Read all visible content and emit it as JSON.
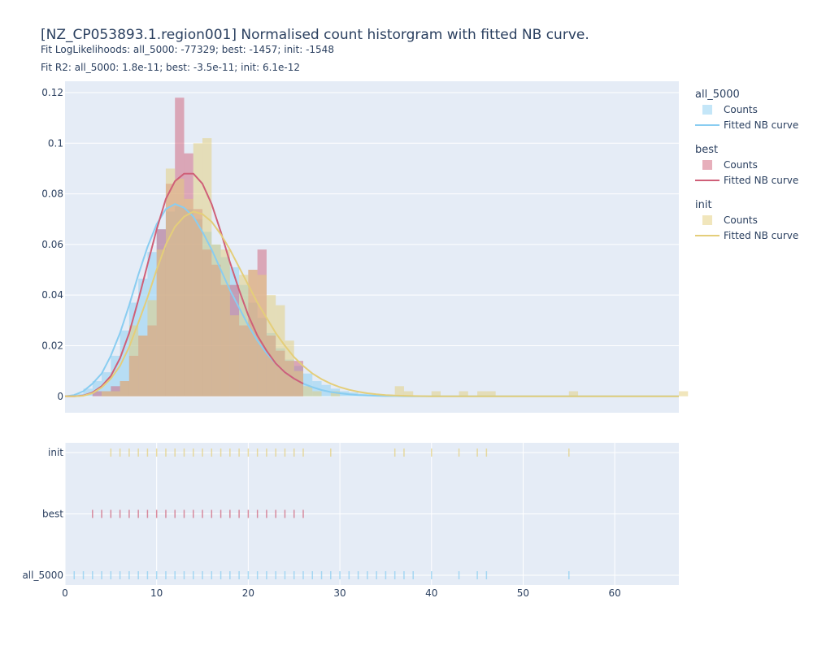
{
  "title": "[NZ_CP053893.1.region001] Normalised count historgram with fitted NB curve.",
  "subtitle_1": "Fit LogLikelihoods: all_5000: -77329; best: -1457; init: -1548",
  "subtitle_2": "Fit R2: all_5000: 1.8e-11; best: -3.5e-11; init: 6.1e-12",
  "colors": {
    "plot_bg": "#e5ecf6",
    "grid": "#ffffff",
    "all_5000": "#89cdf1",
    "best": "#cf5f78",
    "init": "#e4ce7a"
  },
  "legend": [
    {
      "group": "all_5000",
      "items": [
        "Counts",
        "Fitted NB curve"
      ]
    },
    {
      "group": "best",
      "items": [
        "Counts",
        "Fitted NB curve"
      ]
    },
    {
      "group": "init",
      "items": [
        "Counts",
        "Fitted NB curve"
      ]
    }
  ],
  "chart_data": [
    {
      "type": "bar",
      "panel": "histogram",
      "xlim": [
        0,
        67
      ],
      "ylim": [
        -0.0065,
        0.1245
      ],
      "yticks": [
        0,
        0.02,
        0.04,
        0.06,
        0.08,
        0.1,
        0.12
      ],
      "ytick_labels": [
        "0",
        "0.02",
        "0.04",
        "0.06",
        "0.08",
        "0.1",
        "0.12"
      ],
      "grid": true,
      "legend_position": "right",
      "series": [
        {
          "name": "all_5000",
          "kind": "histogram",
          "bin_width": 1,
          "x": [
            0,
            1,
            2,
            3,
            4,
            5,
            6,
            7,
            8,
            9,
            10,
            11,
            12,
            13,
            14,
            15,
            16,
            17,
            18,
            19,
            20,
            21,
            22,
            23,
            24,
            25,
            26,
            27,
            28,
            29,
            30,
            31,
            32,
            33,
            34,
            35,
            36,
            37
          ],
          "values": [
            0,
            0.001,
            0.003,
            0.006,
            0.0095,
            0.016,
            0.026,
            0.037,
            0.0465,
            0.057,
            0.066,
            0.073,
            0.075,
            0.074,
            0.07,
            0.065,
            0.06,
            0.055,
            0.051,
            0.044,
            0.037,
            0.031,
            0.025,
            0.019,
            0.0145,
            0.012,
            0.009,
            0.006,
            0.0045,
            0.003,
            0.002,
            0.0015,
            0.001,
            0.001,
            0.0005,
            0.0005,
            0.0005,
            0.0003
          ]
        },
        {
          "name": "best",
          "kind": "histogram",
          "bin_width": 1,
          "x": [
            3,
            4,
            5,
            6,
            7,
            8,
            9,
            10,
            11,
            12,
            13,
            14,
            15,
            16,
            17,
            18,
            19,
            20,
            21,
            22,
            23,
            24,
            25
          ],
          "values": [
            0.002,
            0.002,
            0.004,
            0.006,
            0.016,
            0.024,
            0.028,
            0.066,
            0.084,
            0.118,
            0.096,
            0.074,
            0.058,
            0.052,
            0.044,
            0.044,
            0.028,
            0.05,
            0.058,
            0.024,
            0.018,
            0.014,
            0.014
          ]
        },
        {
          "name": "init",
          "kind": "histogram",
          "bin_width": 1,
          "x": [
            4,
            5,
            6,
            7,
            8,
            9,
            10,
            11,
            12,
            13,
            14,
            15,
            16,
            17,
            18,
            19,
            20,
            21,
            22,
            23,
            24,
            25,
            26,
            27,
            29,
            36,
            37,
            40,
            43,
            45,
            46,
            55,
            67
          ],
          "values": [
            0.002,
            0.002,
            0.006,
            0.028,
            0.024,
            0.038,
            0.058,
            0.09,
            0.086,
            0.078,
            0.1,
            0.102,
            0.06,
            0.058,
            0.032,
            0.048,
            0.05,
            0.048,
            0.04,
            0.036,
            0.022,
            0.01,
            0.004,
            0.002,
            0.002,
            0.004,
            0.002,
            0.002,
            0.002,
            0.002,
            0.002,
            0.002,
            0.002
          ]
        },
        {
          "name": "all_5000",
          "kind": "fitted_curve",
          "x": [
            0,
            1,
            2,
            3,
            4,
            5,
            6,
            7,
            8,
            9,
            10,
            11,
            12,
            13,
            14,
            15,
            16,
            17,
            18,
            19,
            20,
            21,
            22,
            23,
            24,
            25,
            26,
            27,
            28,
            29,
            30,
            31,
            32,
            33,
            34,
            35,
            36,
            37,
            38,
            40,
            45,
            50,
            55,
            60,
            67
          ],
          "values": [
            0,
            0.0005,
            0.002,
            0.005,
            0.009,
            0.016,
            0.025,
            0.036,
            0.048,
            0.059,
            0.068,
            0.074,
            0.076,
            0.0745,
            0.071,
            0.065,
            0.058,
            0.05,
            0.042,
            0.035,
            0.028,
            0.022,
            0.017,
            0.013,
            0.0095,
            0.007,
            0.005,
            0.0036,
            0.0025,
            0.0017,
            0.0012,
            0.0008,
            0.0005,
            0.0003,
            0.0002,
            0.0001,
            0.0001,
            5e-05,
            0,
            0,
            0,
            0,
            0,
            0,
            0
          ]
        },
        {
          "name": "best",
          "kind": "fitted_curve",
          "x": [
            0,
            1,
            2,
            3,
            4,
            5,
            6,
            7,
            8,
            9,
            10,
            11,
            12,
            13,
            14,
            15,
            16,
            17,
            18,
            19,
            20,
            21,
            22,
            23,
            24,
            25,
            26
          ],
          "values": [
            0,
            0,
            0.0003,
            0.0015,
            0.004,
            0.008,
            0.015,
            0.025,
            0.038,
            0.052,
            0.066,
            0.078,
            0.085,
            0.088,
            0.088,
            0.084,
            0.076,
            0.065,
            0.053,
            0.042,
            0.032,
            0.024,
            0.018,
            0.013,
            0.0095,
            0.007,
            0.005
          ]
        },
        {
          "name": "init",
          "kind": "fitted_curve",
          "x": [
            0,
            1,
            2,
            3,
            4,
            5,
            6,
            7,
            8,
            9,
            10,
            11,
            12,
            13,
            14,
            15,
            16,
            17,
            18,
            19,
            20,
            21,
            22,
            23,
            24,
            25,
            26,
            27,
            28,
            29,
            30,
            31,
            32,
            33,
            34,
            35,
            36,
            37,
            38,
            40,
            45,
            50,
            55,
            60,
            67
          ],
          "values": [
            0,
            0,
            0.0002,
            0.0012,
            0.0035,
            0.007,
            0.012,
            0.0195,
            0.029,
            0.039,
            0.05,
            0.06,
            0.067,
            0.071,
            0.073,
            0.072,
            0.069,
            0.064,
            0.058,
            0.051,
            0.044,
            0.037,
            0.031,
            0.025,
            0.02,
            0.0155,
            0.012,
            0.009,
            0.0068,
            0.005,
            0.0036,
            0.0026,
            0.0018,
            0.0012,
            0.0008,
            0.0005,
            0.0003,
            0.0002,
            0.0001,
            0,
            0,
            0,
            0,
            0,
            0
          ]
        }
      ]
    },
    {
      "type": "scatter",
      "panel": "rug",
      "xlim": [
        0,
        67
      ],
      "xticks": [
        0,
        10,
        20,
        30,
        40,
        50,
        60
      ],
      "xtick_labels": [
        "0",
        "10",
        "20",
        "30",
        "40",
        "50",
        "60"
      ],
      "categories": [
        "init",
        "best",
        "all_5000"
      ],
      "series": [
        {
          "name": "init",
          "x": [
            5,
            6,
            7,
            8,
            9,
            10,
            11,
            12,
            13,
            14,
            15,
            16,
            17,
            18,
            19,
            20,
            21,
            22,
            23,
            24,
            25,
            26,
            29,
            36,
            37,
            40,
            43,
            45,
            46,
            55
          ]
        },
        {
          "name": "best",
          "x": [
            3,
            4,
            5,
            6,
            7,
            8,
            9,
            10,
            11,
            12,
            13,
            14,
            15,
            16,
            17,
            18,
            19,
            20,
            21,
            22,
            23,
            24,
            25,
            26
          ]
        },
        {
          "name": "all_5000",
          "x": [
            1,
            2,
            3,
            4,
            5,
            6,
            7,
            8,
            9,
            10,
            11,
            12,
            13,
            14,
            15,
            16,
            17,
            18,
            19,
            20,
            21,
            22,
            23,
            24,
            25,
            26,
            27,
            28,
            29,
            30,
            31,
            32,
            33,
            34,
            35,
            36,
            37,
            38,
            40,
            43,
            45,
            46,
            55
          ]
        }
      ]
    }
  ]
}
